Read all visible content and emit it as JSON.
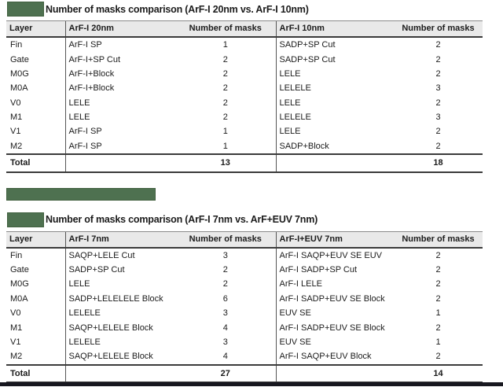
{
  "colors": {
    "redaction_green": "#4e7150",
    "header_gray": "#e9e9e9",
    "rule_dark": "#3b3b3b",
    "bottom_bar": "#17171f",
    "background": "#ffffff"
  },
  "tables": [
    {
      "title": "Number of masks comparison (ArF-I 20nm vs. ArF-I 10nm)",
      "headers": [
        "Layer",
        "ArF-I 20nm",
        "Number of masks",
        "ArF-I 10nm",
        "Number of masks"
      ],
      "rows": [
        [
          "Fin",
          "ArF-I SP",
          "1",
          "SADP+SP Cut",
          "2"
        ],
        [
          "Gate",
          "ArF-I+SP Cut",
          "2",
          "SADP+SP Cut",
          "2"
        ],
        [
          "M0G",
          "ArF-I+Block",
          "2",
          "LELE",
          "2"
        ],
        [
          "M0A",
          "ArF-I+Block",
          "2",
          "LELELE",
          "3"
        ],
        [
          "V0",
          "LELE",
          "2",
          "LELE",
          "2"
        ],
        [
          "M1",
          "LELE",
          "2",
          "LELELE",
          "3"
        ],
        [
          "V1",
          "ArF-I SP",
          "1",
          "LELE",
          "2"
        ],
        [
          "M2",
          "ArF-I SP",
          "1",
          "SADP+Block",
          "2"
        ]
      ],
      "total": {
        "label": "Total",
        "left_total": "13",
        "right_total": "18"
      }
    },
    {
      "title": "Number of masks comparison (ArF-I 7nm vs. ArF+EUV 7nm)",
      "headers": [
        "Layer",
        "ArF-I 7nm",
        "Number of masks",
        "ArF-I+EUV 7nm",
        "Number of masks"
      ],
      "rows": [
        [
          "Fin",
          "SAQP+LELE Cut",
          "3",
          "ArF-I SAQP+EUV SE EUV",
          "2"
        ],
        [
          "Gate",
          "SADP+SP Cut",
          "2",
          "ArF-I SADP+SP Cut",
          "2"
        ],
        [
          "M0G",
          "LELE",
          "2",
          "ArF-I LELE",
          "2"
        ],
        [
          "M0A",
          "SADP+LELELELE Block",
          "6",
          "ArF-I SADP+EUV SE Block",
          "2"
        ],
        [
          "V0",
          "LELELE",
          "3",
          "EUV SE",
          "1"
        ],
        [
          "M1",
          "SAQP+LELELE Block",
          "4",
          "ArF-I SADP+EUV SE Block",
          "2"
        ],
        [
          "V1",
          "LELELE",
          "3",
          "EUV SE",
          "1"
        ],
        [
          "M2",
          "SAQP+LELELE Block",
          "4",
          "ArF-I SAQP+EUV Block",
          "2"
        ]
      ],
      "total": {
        "label": "Total",
        "left_total": "27",
        "right_total": "14"
      }
    }
  ]
}
